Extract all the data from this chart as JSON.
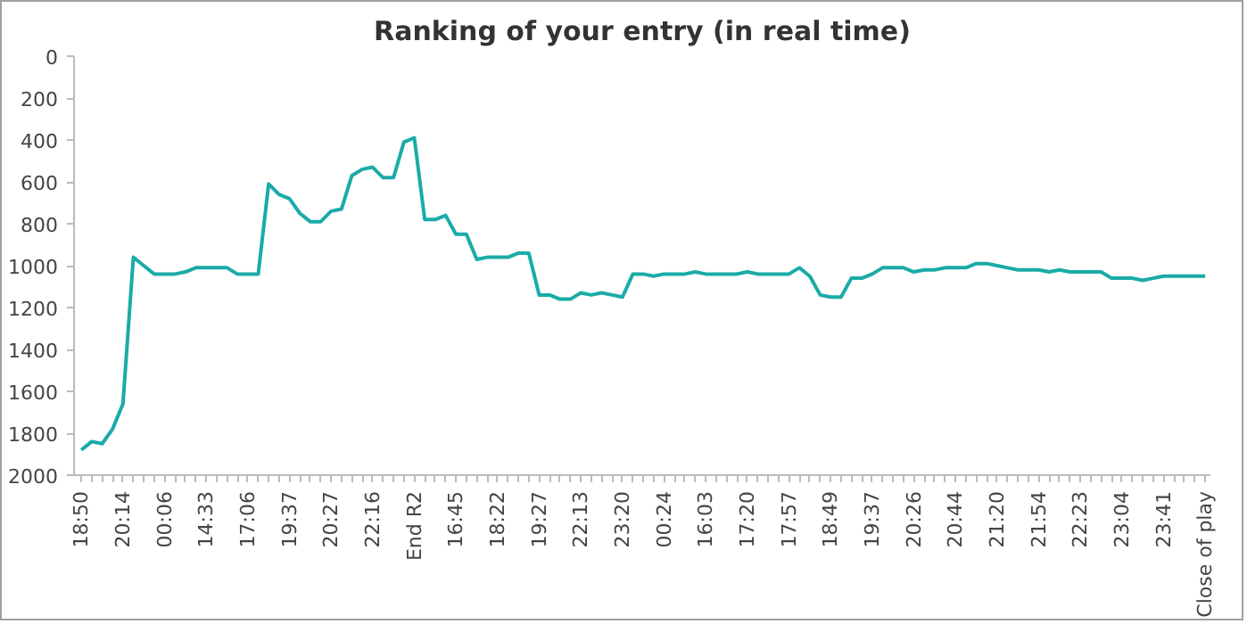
{
  "chart_data": {
    "type": "line",
    "title": "Ranking of your entry (in real time)",
    "categories": [
      "18:50",
      null,
      null,
      null,
      "20:14",
      null,
      null,
      null,
      "00:06",
      null,
      null,
      null,
      "14:33",
      null,
      null,
      null,
      "17:06",
      null,
      null,
      null,
      "19:37",
      null,
      null,
      null,
      "20:27",
      null,
      null,
      null,
      "22:16",
      null,
      null,
      null,
      "End R2",
      null,
      null,
      null,
      "16:45",
      null,
      null,
      null,
      "18:22",
      null,
      null,
      null,
      "19:27",
      null,
      null,
      null,
      "22:13",
      null,
      null,
      null,
      "23:20",
      null,
      null,
      null,
      "00:24",
      null,
      null,
      null,
      "16:03",
      null,
      null,
      null,
      "17:20",
      null,
      null,
      null,
      "17:57",
      null,
      null,
      null,
      "18:49",
      null,
      null,
      null,
      "19:37",
      null,
      null,
      null,
      "20:26",
      null,
      null,
      null,
      "20:44",
      null,
      null,
      null,
      "21:20",
      null,
      null,
      null,
      "21:54",
      null,
      null,
      null,
      "22:23",
      null,
      null,
      null,
      "23:04",
      null,
      null,
      null,
      "23:41",
      null,
      null,
      null,
      "Close of play"
    ],
    "series": [
      {
        "color": "#1aaba8",
        "values": [
          1880,
          1840,
          1850,
          1780,
          1660,
          960,
          1000,
          1040,
          1040,
          1040,
          1030,
          1010,
          1010,
          1010,
          1010,
          1040,
          1040,
          1040,
          610,
          660,
          680,
          750,
          790,
          790,
          740,
          730,
          570,
          540,
          530,
          580,
          580,
          410,
          390,
          780,
          780,
          760,
          850,
          850,
          970,
          960,
          960,
          960,
          940,
          940,
          1140,
          1140,
          1160,
          1160,
          1130,
          1140,
          1130,
          1140,
          1150,
          1040,
          1040,
          1050,
          1040,
          1040,
          1040,
          1030,
          1040,
          1040,
          1040,
          1040,
          1030,
          1040,
          1040,
          1040,
          1040,
          1010,
          1050,
          1140,
          1150,
          1150,
          1060,
          1060,
          1040,
          1010,
          1010,
          1010,
          1030,
          1020,
          1020,
          1010,
          1010,
          1010,
          990,
          990,
          1000,
          1010,
          1020,
          1020,
          1020,
          1030,
          1020,
          1030,
          1030,
          1030,
          1030,
          1060,
          1060,
          1060,
          1070,
          1060,
          1050,
          1050,
          1050,
          1050,
          1050
        ]
      }
    ],
    "ylim": [
      2000,
      0
    ],
    "yticks": [
      0,
      200,
      400,
      600,
      800,
      1000,
      1200,
      1400,
      1600,
      1800,
      2000
    ],
    "grid": false,
    "marker": "none",
    "line_style": "solid"
  }
}
